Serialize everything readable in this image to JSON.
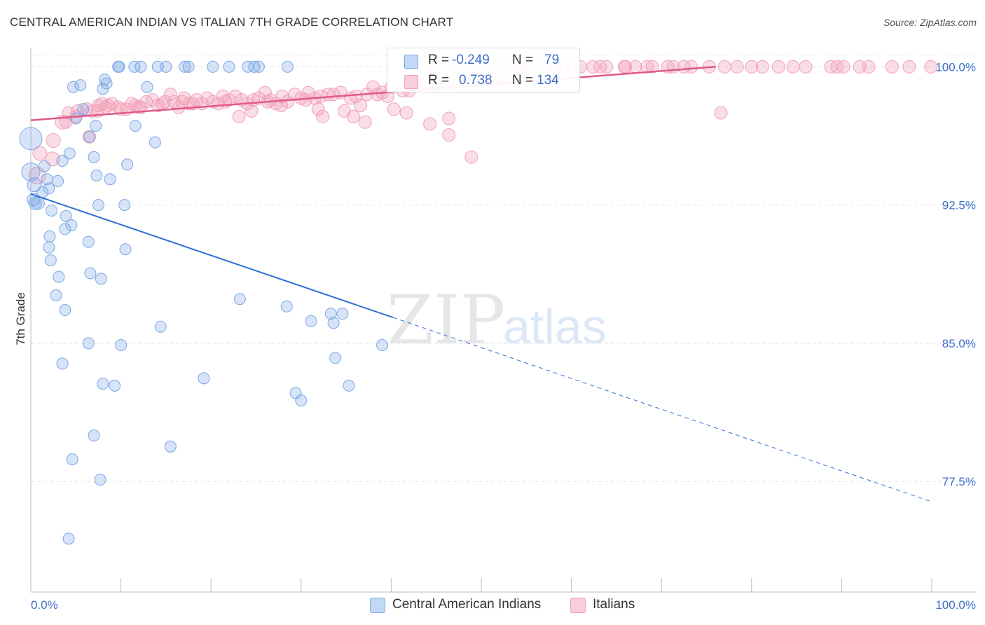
{
  "header": {
    "title": "CENTRAL AMERICAN INDIAN VS ITALIAN 7TH GRADE CORRELATION CHART",
    "source": "Source: ZipAtlas.com"
  },
  "legend_box": {
    "rows": [
      {
        "r_label": "R =",
        "r_value": "-0.249",
        "n_label": "N =",
        "n_value": "79"
      },
      {
        "r_label": "R =",
        "r_value": "0.738",
        "n_label": "N =",
        "n_value": "134"
      }
    ]
  },
  "bottom_legend": {
    "items": [
      "Central American Indians",
      "Italians"
    ]
  },
  "watermark": {
    "zip": "ZIP",
    "atlas": "atlas"
  },
  "chart_data": {
    "type": "scatter",
    "title": "CENTRAL AMERICAN INDIAN VS ITALIAN 7TH GRADE CORRELATION CHART",
    "xlabel": "",
    "ylabel": "7th Grade",
    "xlim": [
      0,
      100
    ],
    "ylim": [
      71.5,
      101
    ],
    "x_tick_labels": [
      "0.0%",
      "100.0%"
    ],
    "y_ticks": [
      77.5,
      85.0,
      92.5,
      100.0
    ],
    "y_tick_labels": [
      "77.5%",
      "85.0%",
      "92.5%",
      "100.0%"
    ],
    "grid": true,
    "legend_position": "top-center",
    "colors": {
      "central_american_indians": "#7ba7e6",
      "central_american_indians_line": "#2f6fd3",
      "italians": "#f2a0b8",
      "italians_line": "#e05a87",
      "axis_text": "#3d6fc8"
    },
    "series": [
      {
        "name": "Central American Indians",
        "stats": {
          "R": -0.249,
          "N": 79
        },
        "trend": {
          "x0": 0.0,
          "y0": 93.1,
          "x1": 40.2,
          "y1": 86.4,
          "dash_to_x": 100.0,
          "dash_to_y": 76.4
        },
        "points": [
          [
            0.0,
            96.1,
            16
          ],
          [
            0.0,
            94.3,
            13
          ],
          [
            0.4,
            93.6,
            10
          ],
          [
            0.3,
            92.8,
            9
          ],
          [
            0.5,
            92.6,
            9
          ],
          [
            0.8,
            92.6,
            9
          ],
          [
            1.3,
            93.2,
            8
          ],
          [
            1.8,
            93.9,
            8
          ],
          [
            2.0,
            93.4,
            8
          ],
          [
            1.5,
            94.6,
            8
          ],
          [
            3.5,
            94.9,
            8
          ],
          [
            4.3,
            95.3,
            8
          ],
          [
            7.0,
            95.1,
            8
          ],
          [
            5.0,
            97.2,
            8
          ],
          [
            4.7,
            98.9,
            8
          ],
          [
            5.5,
            99.0,
            8
          ],
          [
            8.2,
            99.3,
            8
          ],
          [
            8.4,
            99.1,
            8
          ],
          [
            8.0,
            98.8,
            8
          ],
          [
            9.8,
            100.0,
            8
          ],
          [
            9.7,
            100.0,
            8
          ],
          [
            11.5,
            100.0,
            8
          ],
          [
            12.2,
            100.0,
            8
          ],
          [
            14.1,
            100.0,
            8
          ],
          [
            15.0,
            100.0,
            8
          ],
          [
            17.5,
            100.0,
            8
          ],
          [
            17.1,
            100.0,
            8
          ],
          [
            20.2,
            100.0,
            8
          ],
          [
            22.0,
            100.0,
            8
          ],
          [
            24.1,
            100.0,
            8
          ],
          [
            24.8,
            100.0,
            8
          ],
          [
            25.3,
            100.0,
            8
          ],
          [
            28.5,
            100.0,
            8
          ],
          [
            12.9,
            98.9,
            8
          ],
          [
            5.8,
            97.7,
            8
          ],
          [
            7.2,
            96.8,
            8
          ],
          [
            6.5,
            96.2,
            8
          ],
          [
            11.6,
            96.8,
            8
          ],
          [
            13.8,
            95.9,
            8
          ],
          [
            10.7,
            94.7,
            8
          ],
          [
            7.3,
            94.1,
            8
          ],
          [
            8.8,
            93.9,
            8
          ],
          [
            3.0,
            93.8,
            8
          ],
          [
            2.3,
            92.2,
            8
          ],
          [
            7.5,
            92.5,
            8
          ],
          [
            10.4,
            92.5,
            8
          ],
          [
            3.9,
            91.9,
            8
          ],
          [
            4.5,
            91.4,
            8
          ],
          [
            3.8,
            91.2,
            8
          ],
          [
            2.1,
            90.8,
            8
          ],
          [
            6.4,
            90.5,
            8
          ],
          [
            2.0,
            90.2,
            8
          ],
          [
            10.5,
            90.1,
            8
          ],
          [
            2.2,
            89.5,
            8
          ],
          [
            6.6,
            88.8,
            8
          ],
          [
            3.1,
            88.6,
            8
          ],
          [
            7.8,
            88.5,
            8
          ],
          [
            2.8,
            87.6,
            8
          ],
          [
            3.8,
            86.8,
            8
          ],
          [
            23.2,
            87.4,
            8
          ],
          [
            28.4,
            87.0,
            8
          ],
          [
            33.3,
            86.6,
            8
          ],
          [
            34.6,
            86.6,
            8
          ],
          [
            33.6,
            86.1,
            8
          ],
          [
            31.1,
            86.2,
            8
          ],
          [
            14.4,
            85.9,
            8
          ],
          [
            6.4,
            85.0,
            8
          ],
          [
            10.0,
            84.9,
            8
          ],
          [
            39.0,
            84.9,
            8
          ],
          [
            3.5,
            83.9,
            8
          ],
          [
            33.8,
            84.2,
            8
          ],
          [
            8.0,
            82.8,
            8
          ],
          [
            9.3,
            82.7,
            8
          ],
          [
            19.2,
            83.1,
            8
          ],
          [
            29.4,
            82.3,
            8
          ],
          [
            30.0,
            81.9,
            8
          ],
          [
            35.3,
            82.7,
            8
          ],
          [
            7.0,
            80.0,
            8
          ],
          [
            15.5,
            79.4,
            8
          ],
          [
            4.6,
            78.7,
            8
          ],
          [
            7.7,
            77.6,
            8
          ],
          [
            4.2,
            74.4,
            8
          ]
        ]
      },
      {
        "name": "Italians",
        "stats": {
          "R": 0.738,
          "N": 134
        },
        "trend": {
          "x0": 0.0,
          "y0": 97.1,
          "x1": 76.0,
          "y1": 100.0
        },
        "points": [
          [
            0.7,
            94.1,
            12
          ],
          [
            1.0,
            95.3,
            10
          ],
          [
            2.4,
            95.0,
            10
          ],
          [
            2.5,
            96.0,
            10
          ],
          [
            3.5,
            97.0,
            10
          ],
          [
            4.2,
            97.5,
            9
          ],
          [
            5.2,
            97.6,
            9
          ],
          [
            6.5,
            96.2,
            9
          ],
          [
            6.2,
            97.7,
            9
          ],
          [
            7.4,
            97.6,
            9
          ],
          [
            7.5,
            97.9,
            9
          ],
          [
            7.9,
            98.0,
            9
          ],
          [
            8.3,
            97.8,
            9
          ],
          [
            9.0,
            98.0,
            9
          ],
          [
            9.7,
            97.8,
            9
          ],
          [
            10.6,
            97.7,
            9
          ],
          [
            11.2,
            98.0,
            9
          ],
          [
            11.6,
            97.9,
            9
          ],
          [
            12.2,
            97.8,
            9
          ],
          [
            12.8,
            98.1,
            9
          ],
          [
            13.5,
            98.2,
            9
          ],
          [
            14.1,
            97.9,
            9
          ],
          [
            14.6,
            98.0,
            9
          ],
          [
            15.5,
            98.5,
            9
          ],
          [
            15.9,
            98.1,
            9
          ],
          [
            16.4,
            97.8,
            9
          ],
          [
            17.0,
            98.3,
            9
          ],
          [
            17.6,
            98.0,
            9
          ],
          [
            18.4,
            98.2,
            9
          ],
          [
            19.0,
            98.0,
            9
          ],
          [
            19.6,
            98.3,
            9
          ],
          [
            20.2,
            98.1,
            9
          ],
          [
            20.8,
            98.0,
            9
          ],
          [
            21.3,
            98.4,
            9
          ],
          [
            22.0,
            98.2,
            9
          ],
          [
            22.7,
            98.4,
            9
          ],
          [
            23.4,
            98.2,
            9
          ],
          [
            24.0,
            98.0,
            9
          ],
          [
            24.7,
            98.2,
            9
          ],
          [
            25.3,
            98.3,
            9
          ],
          [
            26.0,
            98.6,
            9
          ],
          [
            26.6,
            98.2,
            9
          ],
          [
            27.2,
            98.0,
            9
          ],
          [
            27.9,
            98.4,
            9
          ],
          [
            28.5,
            98.1,
            9
          ],
          [
            29.3,
            98.5,
            9
          ],
          [
            30.0,
            98.3,
            9
          ],
          [
            30.8,
            98.6,
            9
          ],
          [
            31.5,
            98.3,
            9
          ],
          [
            32.2,
            98.4,
            9
          ],
          [
            33.0,
            98.5,
            9
          ],
          [
            34.4,
            98.6,
            9
          ],
          [
            35.5,
            98.3,
            9
          ],
          [
            36.1,
            98.4,
            9
          ],
          [
            37.3,
            98.5,
            9
          ],
          [
            38.0,
            98.9,
            9
          ],
          [
            39.0,
            98.6,
            9
          ],
          [
            40.0,
            98.9,
            9
          ],
          [
            42.0,
            98.7,
            9
          ],
          [
            43.2,
            99.0,
            9
          ],
          [
            23.1,
            97.3,
            9
          ],
          [
            24.5,
            97.6,
            9
          ],
          [
            27.8,
            97.9,
            9
          ],
          [
            31.9,
            97.7,
            9
          ],
          [
            32.4,
            97.3,
            9
          ],
          [
            34.8,
            97.6,
            9
          ],
          [
            35.8,
            97.3,
            9
          ],
          [
            36.6,
            97.9,
            9
          ],
          [
            37.1,
            97.0,
            9
          ],
          [
            40.3,
            97.7,
            9
          ],
          [
            41.7,
            97.5,
            9
          ],
          [
            44.3,
            96.9,
            9
          ],
          [
            46.4,
            97.2,
            9
          ],
          [
            46.4,
            96.3,
            9
          ],
          [
            48.9,
            95.1,
            9
          ],
          [
            76.6,
            97.5,
            9
          ],
          [
            46.1,
            99.2,
            9
          ],
          [
            48.4,
            99.6,
            9
          ],
          [
            50.1,
            99.4,
            9
          ],
          [
            52.2,
            99.5,
            9
          ],
          [
            54.5,
            99.8,
            9
          ],
          [
            56.0,
            99.7,
            9
          ],
          [
            58.2,
            100.0,
            9
          ],
          [
            60.1,
            100.0,
            9
          ],
          [
            62.4,
            100.0,
            9
          ],
          [
            63.9,
            100.0,
            9
          ],
          [
            65.9,
            100.0,
            9
          ],
          [
            67.1,
            100.0,
            9
          ],
          [
            69.0,
            100.0,
            9
          ],
          [
            71.3,
            100.0,
            9
          ],
          [
            72.5,
            100.0,
            9
          ],
          [
            75.3,
            100.0,
            9
          ],
          [
            78.4,
            100.0,
            9
          ],
          [
            81.2,
            100.0,
            9
          ],
          [
            84.6,
            100.0,
            9
          ],
          [
            88.8,
            100.0,
            9
          ],
          [
            90.2,
            100.0,
            9
          ],
          [
            92.0,
            100.0,
            9
          ],
          [
            95.6,
            100.0,
            9
          ],
          [
            99.9,
            100.0,
            9
          ],
          [
            44.7,
            100.0,
            9
          ],
          [
            47.3,
            100.0,
            9
          ],
          [
            49.2,
            100.0,
            9
          ],
          [
            51.5,
            100.0,
            9
          ],
          [
            53.0,
            100.0,
            9
          ],
          [
            55.0,
            100.0,
            9
          ],
          [
            57.1,
            100.0,
            9
          ],
          [
            59.0,
            100.0,
            9
          ],
          [
            61.0,
            100.0,
            9
          ],
          [
            63.2,
            100.0,
            9
          ],
          [
            66.0,
            100.0,
            9
          ],
          [
            68.4,
            100.0,
            9
          ],
          [
            70.7,
            100.0,
            9
          ],
          [
            73.3,
            100.0,
            9
          ],
          [
            77.0,
            100.0,
            9
          ],
          [
            80.0,
            100.0,
            9
          ],
          [
            83.0,
            100.0,
            9
          ],
          [
            86.0,
            100.0,
            9
          ],
          [
            89.5,
            100.0,
            9
          ],
          [
            93.0,
            100.0,
            9
          ],
          [
            97.5,
            100.0,
            9
          ],
          [
            12.0,
            97.8,
            9
          ],
          [
            3.9,
            97.0,
            9
          ],
          [
            5.0,
            97.3,
            9
          ],
          [
            16.8,
            98.1,
            9
          ],
          [
            21.6,
            98.1,
            9
          ],
          [
            30.5,
            98.2,
            9
          ],
          [
            33.6,
            98.5,
            9
          ],
          [
            38.5,
            98.5,
            9
          ],
          [
            45.0,
            99.0,
            9
          ],
          [
            41.3,
            98.7,
            9
          ],
          [
            39.6,
            98.4,
            9
          ],
          [
            26.3,
            98.1,
            9
          ],
          [
            18.0,
            98.0,
            9
          ],
          [
            14.9,
            98.1,
            9
          ],
          [
            10.0,
            97.7,
            9
          ],
          [
            8.6,
            97.9,
            9
          ],
          [
            6.8,
            97.6,
            9
          ]
        ]
      }
    ]
  }
}
